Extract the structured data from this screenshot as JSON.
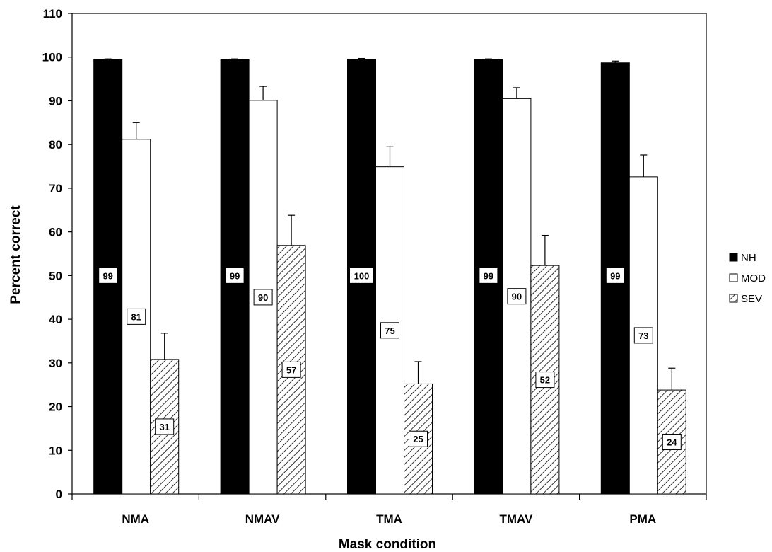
{
  "chart_data": {
    "type": "bar",
    "xlabel": "Mask condition",
    "ylabel": "Percent correct",
    "ylim": [
      0,
      110
    ],
    "yticks": [
      0,
      10,
      20,
      30,
      40,
      50,
      60,
      70,
      80,
      90,
      100,
      110
    ],
    "categories": [
      "NMA",
      "NMAV",
      "TMA",
      "TMAV",
      "PMA"
    ],
    "series": [
      {
        "name": "NH",
        "style": "solid-black",
        "values": [
          99.4,
          99.4,
          99.5,
          99.4,
          98.7
        ],
        "errors": [
          0.2,
          0.2,
          0.2,
          0.2,
          0.4
        ],
        "labels": [
          "99",
          "99",
          "100",
          "99",
          "99"
        ]
      },
      {
        "name": "MOD",
        "style": "white",
        "values": [
          81.2,
          90.1,
          74.9,
          90.5,
          72.6
        ],
        "errors": [
          3.8,
          3.2,
          4.7,
          2.5,
          5.0
        ],
        "labels": [
          "81",
          "90",
          "75",
          "90",
          "73"
        ]
      },
      {
        "name": "SEV",
        "style": "hatched",
        "values": [
          30.8,
          56.9,
          25.2,
          52.3,
          23.8
        ],
        "errors": [
          6.0,
          6.9,
          5.1,
          6.9,
          5.0
        ],
        "labels": [
          "31",
          "57",
          "25",
          "52",
          "24"
        ]
      }
    ],
    "legend_position": "right",
    "grid": false
  }
}
